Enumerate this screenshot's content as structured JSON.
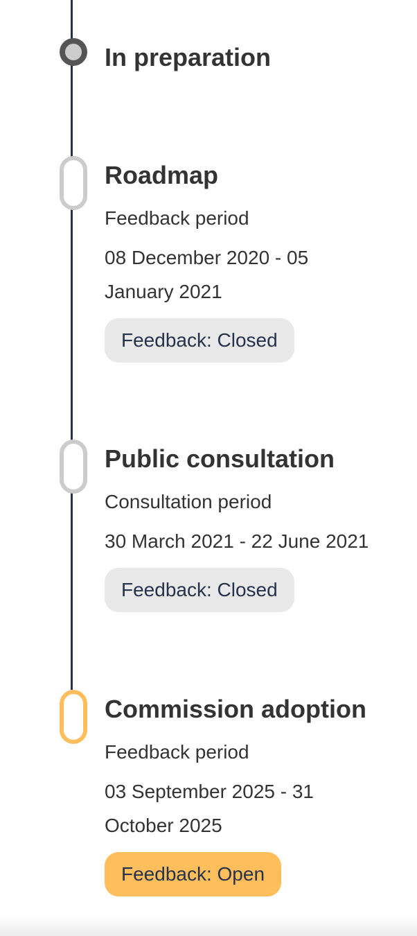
{
  "timeline": [
    {
      "title": "In preparation",
      "state": "current"
    },
    {
      "title": "Roadmap",
      "period_label": "Feedback period",
      "dates": "08 December 2020 - 05 January 2021",
      "badge": "Feedback: Closed",
      "state": "closed"
    },
    {
      "title": "Public consultation",
      "period_label": "Consultation period",
      "dates": "30 March 2021 - 22 June 2021",
      "badge": "Feedback: Closed",
      "state": "closed"
    },
    {
      "title": "Commission adoption",
      "period_label": "Feedback period",
      "dates": "03 September 2025 - 31 October 2025",
      "badge": "Feedback: Open",
      "state": "open"
    }
  ],
  "colors": {
    "line": "#26324b",
    "open": "#ffbe5c",
    "closed_badge": "#e9e9e9",
    "marker_inactive": "#cccccc"
  }
}
